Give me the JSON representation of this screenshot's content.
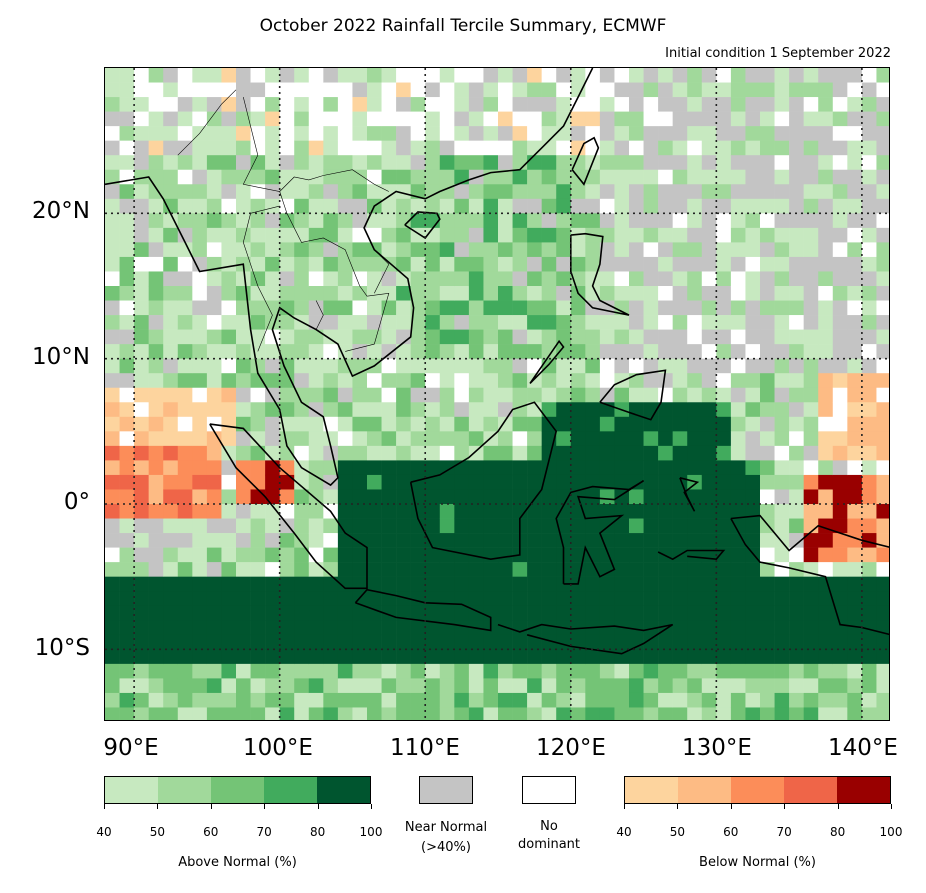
{
  "title": "October 2022 Rainfall Tercile Summary, ECMWF",
  "subtitle": "Initial condition 1 September 2022",
  "map": {
    "lon_range": [
      88,
      142
    ],
    "lat_range": [
      -15,
      30
    ],
    "lat_labels": [
      "20°N",
      "10°N",
      "0°",
      "10°S"
    ],
    "lon_labels": [
      "90°E",
      "100°E",
      "110°E",
      "120°E",
      "130°E",
      "140°E"
    ]
  },
  "legend": {
    "above": {
      "colors": [
        "#c7e9c0",
        "#a1d99b",
        "#74c476",
        "#41ab5d",
        "#00552f"
      ],
      "ticks": [
        "40",
        "50",
        "60",
        "70",
        "80",
        "100"
      ],
      "label": "Above Normal (%)"
    },
    "near": {
      "color": "#c4c4c4",
      "label_line1": "Near Normal",
      "label_line2": "(>40%)"
    },
    "none": {
      "color": "#ffffff",
      "label_line1": "No",
      "label_line2": "dominant"
    },
    "below": {
      "colors": [
        "#fdd49e",
        "#fdbb84",
        "#fc8d59",
        "#ef6548",
        "#990000"
      ],
      "ticks": [
        "40",
        "50",
        "60",
        "70",
        "80",
        "100"
      ],
      "label": "Below Normal (%)"
    }
  }
}
